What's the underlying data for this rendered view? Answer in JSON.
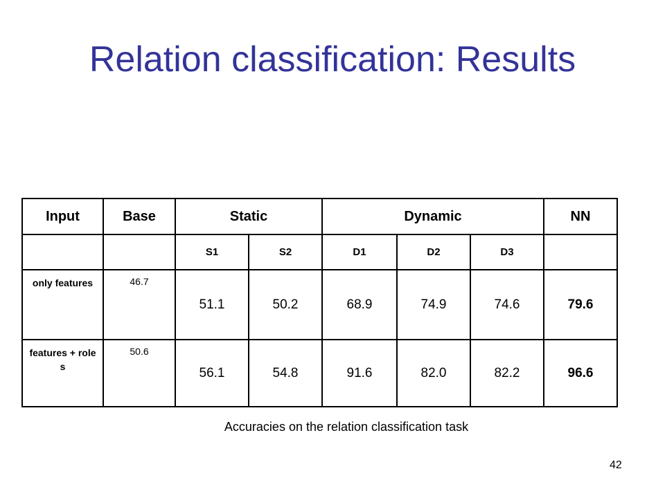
{
  "title": "Relation classification: Results",
  "table": {
    "header": [
      "Input",
      "Base",
      "Static",
      "Dynamic",
      "NN"
    ],
    "subheader": [
      "S1",
      "S2",
      "D1",
      "D2",
      "D3"
    ],
    "rows": [
      [
        "only features",
        "46.7",
        "51.1",
        "50.2",
        "68.9",
        "74.9",
        "74.6",
        "79.6"
      ],
      [
        "features + roles",
        "50.6",
        "56.1",
        "54.8",
        "91.6",
        "82.0",
        "82.2",
        "96.6"
      ]
    ]
  },
  "caption": "Accuracies on the relation classification task",
  "page_number": "42"
}
